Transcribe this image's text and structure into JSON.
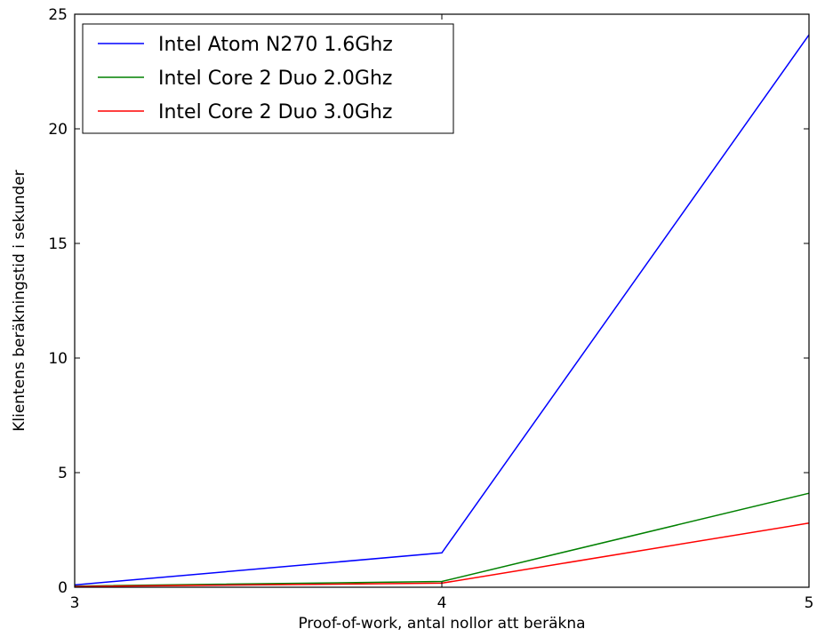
{
  "chart_data": {
    "type": "line",
    "title": "",
    "xlabel": "Proof-of-work, antal nollor att beräkna",
    "ylabel": "Klientens beräkningstid i sekunder",
    "x": [
      3,
      4,
      5
    ],
    "xlim": [
      3,
      5
    ],
    "ylim": [
      0,
      25
    ],
    "xticks": [
      3,
      4,
      5
    ],
    "yticks": [
      0,
      5,
      10,
      15,
      20,
      25
    ],
    "grid": false,
    "legend_position": "top-left",
    "series": [
      {
        "name": "Intel Atom N270 1.6Ghz",
        "color": "#0000ff",
        "values": [
          0.1,
          1.5,
          24.1
        ]
      },
      {
        "name": "Intel Core 2 Duo 2.0Ghz",
        "color": "#008000",
        "values": [
          0.05,
          0.25,
          4.1
        ]
      },
      {
        "name": "Intel Core 2 Duo 3.0Ghz",
        "color": "#ff0000",
        "values": [
          0.03,
          0.18,
          2.8
        ]
      }
    ]
  }
}
